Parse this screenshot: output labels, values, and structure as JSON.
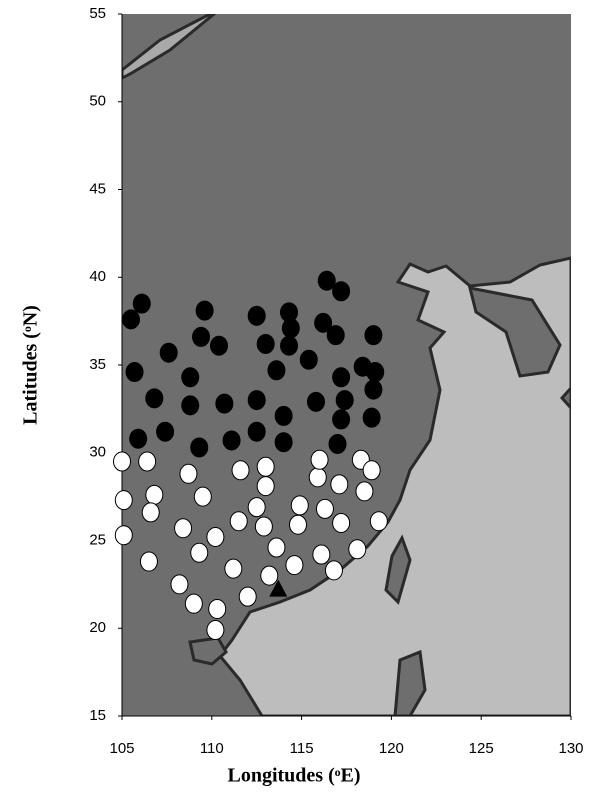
{
  "chart_data": {
    "type": "scatter",
    "xlabel": "Longitudes (ᵒE)",
    "ylabel": "Latitudes (ᵒN)",
    "xlim": [
      105,
      130
    ],
    "ylim": [
      15,
      55
    ],
    "xticks": [
      105,
      110,
      115,
      120,
      125,
      130
    ],
    "yticks": [
      15,
      20,
      25,
      30,
      35,
      40,
      45,
      50,
      55
    ],
    "grid": false,
    "series": [
      {
        "color": "#000000",
        "marker": "circle",
        "x": [
          105.5,
          106.1,
          105.7,
          105.9,
          106.8,
          107.4,
          107.6,
          108.8,
          108.8,
          109.3,
          109.4,
          109.6,
          110.4,
          110.7,
          111.1,
          112.5,
          112.5,
          112.5,
          113.0,
          113.6,
          114.0,
          114.0,
          114.3,
          114.4,
          114.3,
          115.4,
          115.8,
          116.2,
          116.4,
          116.9,
          117.2,
          117.2,
          117.4,
          117.2,
          117.0,
          118.4,
          118.9,
          119.0,
          119.1,
          119.0
        ],
        "values": [
          37.6,
          38.5,
          34.6,
          30.8,
          33.1,
          31.2,
          35.7,
          34.3,
          32.7,
          30.3,
          36.6,
          38.1,
          36.1,
          32.8,
          30.7,
          37.8,
          33.0,
          31.2,
          36.2,
          34.7,
          32.1,
          30.6,
          38.0,
          37.1,
          36.1,
          35.3,
          32.9,
          37.4,
          39.8,
          36.7,
          39.2,
          34.3,
          33.0,
          31.9,
          30.5,
          34.9,
          32.0,
          33.6,
          34.6,
          36.7
        ]
      },
      {
        "color": "#ffffff",
        "marker": "circle",
        "x": [
          105.0,
          105.1,
          105.1,
          106.4,
          106.8,
          106.6,
          106.5,
          108.2,
          108.4,
          108.7,
          109.0,
          109.3,
          109.5,
          110.2,
          110.3,
          110.2,
          111.2,
          111.5,
          111.6,
          112.0,
          112.5,
          112.9,
          113.0,
          113.0,
          113.2,
          113.6,
          114.6,
          114.8,
          114.9,
          115.9,
          116.0,
          116.1,
          116.3,
          116.8,
          117.1,
          117.2,
          118.1,
          118.3,
          118.5,
          118.9,
          119.3
        ],
        "values": [
          29.5,
          27.3,
          25.3,
          29.5,
          27.6,
          26.6,
          23.8,
          22.5,
          25.7,
          28.8,
          21.4,
          24.3,
          27.5,
          25.2,
          21.1,
          19.9,
          23.4,
          26.1,
          29.0,
          21.8,
          26.9,
          25.8,
          29.2,
          28.1,
          23.0,
          24.6,
          23.6,
          25.9,
          27.0,
          28.6,
          29.6,
          24.2,
          26.8,
          23.3,
          28.2,
          26.0,
          24.5,
          29.6,
          27.8,
          29.0,
          26.1
        ]
      },
      {
        "color": "#000000",
        "marker": "triangle",
        "x": [
          113.7
        ],
        "values": [
          22.2
        ]
      }
    ]
  }
}
